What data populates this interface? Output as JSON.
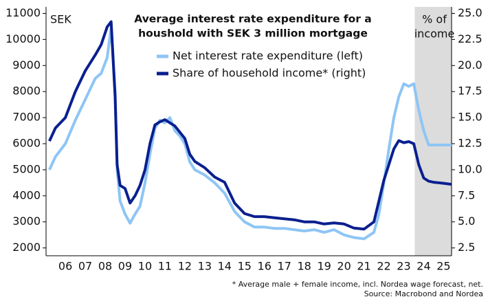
{
  "chart_data": {
    "type": "line",
    "title": [
      "Average interest rate expenditure for a",
      "houshold with SEK 3 million mortgage"
    ],
    "y_unit": "SEK",
    "y2_unit": [
      "% of",
      "income"
    ],
    "x": [
      5.7,
      6,
      6.5,
      7,
      7.5,
      8,
      8.3,
      8.6,
      8.8,
      9,
      9.1,
      9.25,
      9.5,
      9.75,
      10,
      10.25,
      10.5,
      10.75,
      11,
      11.25,
      11.5,
      11.75,
      12,
      12.25,
      12.5,
      12.75,
      13,
      13.5,
      14,
      14.5,
      15,
      15.5,
      16,
      16.5,
      17,
      17.5,
      18,
      18.5,
      19,
      19.5,
      20,
      20.5,
      21,
      21.5,
      22,
      22.25,
      22.5,
      22.75,
      23,
      23.25,
      23.5,
      23.75,
      24,
      24.25,
      24.5,
      24.75,
      25,
      25.5,
      25.9
    ],
    "series": [
      {
        "name": "Net interest rate expenditure (left)",
        "color": "#8ec5f5",
        "values": [
          5000,
          5500,
          6000,
          6900,
          7700,
          8500,
          8700,
          9300,
          10450,
          8000,
          5000,
          3800,
          3300,
          2950,
          3300,
          3600,
          4500,
          5600,
          6600,
          6900,
          6800,
          7000,
          6500,
          6300,
          6000,
          5300,
          5000,
          4800,
          4500,
          4100,
          3400,
          3000,
          2800,
          2800,
          2750,
          2750,
          2700,
          2650,
          2700,
          2600,
          2700,
          2500,
          2400,
          2350,
          2600,
          3300,
          4500,
          5800,
          7000,
          7800,
          8300,
          8200,
          8300,
          7300,
          6500,
          5950,
          5950,
          5950,
          5950
        ]
      },
      {
        "name": "Share of household income* (right)",
        "color": "#0a1f8f",
        "axis": "y2",
        "values": [
          12.75,
          14,
          15,
          17.5,
          19.5,
          21,
          22,
          23.7,
          24.2,
          17,
          10.5,
          8.5,
          8.2,
          6.8,
          7.5,
          8.5,
          10,
          12.5,
          14.3,
          14.6,
          14.8,
          14.5,
          14.2,
          13.6,
          13,
          11.5,
          10.8,
          10.2,
          9.3,
          8.8,
          6.8,
          5.8,
          5.5,
          5.5,
          5.4,
          5.3,
          5.2,
          5,
          5,
          4.8,
          4.9,
          4.8,
          4.4,
          4.3,
          5,
          7,
          9,
          10.5,
          12,
          12.8,
          12.6,
          12.7,
          12.5,
          10.5,
          9.2,
          8.9,
          8.8,
          8.7,
          8.6
        ]
      }
    ],
    "xlim": [
      5.53,
      25.9
    ],
    "xticks": [
      {
        "value": 6.5,
        "label": "06"
      },
      {
        "value": 7.5,
        "label": "07"
      },
      {
        "value": 8.5,
        "label": "08"
      },
      {
        "value": 9.5,
        "label": "09"
      },
      {
        "value": 10.5,
        "label": "10"
      },
      {
        "value": 11.5,
        "label": "11"
      },
      {
        "value": 12.5,
        "label": "12"
      },
      {
        "value": 13.5,
        "label": "13"
      },
      {
        "value": 14.5,
        "label": "14"
      },
      {
        "value": 15.5,
        "label": "15"
      },
      {
        "value": 16.5,
        "label": "16"
      },
      {
        "value": 17.5,
        "label": "17"
      },
      {
        "value": 18.5,
        "label": "18"
      },
      {
        "value": 19.5,
        "label": "19"
      },
      {
        "value": 20.5,
        "label": "20"
      },
      {
        "value": 21.5,
        "label": "21"
      },
      {
        "value": 22.5,
        "label": "22"
      },
      {
        "value": 23.5,
        "label": "23"
      },
      {
        "value": 24.5,
        "label": "24"
      },
      {
        "value": 25.5,
        "label": "25"
      }
    ],
    "ylim": [
      1700,
      11250
    ],
    "yticks": [
      2000,
      3000,
      4000,
      5000,
      6000,
      7000,
      8000,
      9000,
      10000,
      11000
    ],
    "y2lim": [
      1.75,
      25.625
    ],
    "y2ticks": [
      2.5,
      {
        "value": 5,
        "label": "5.0"
      },
      7.5,
      {
        "value": 10,
        "label": "10.0"
      },
      12.5,
      {
        "value": 15,
        "label": "15.0"
      },
      17.5,
      {
        "value": 20,
        "label": "20.0"
      },
      22.5,
      {
        "value": 25,
        "label": "25.0"
      }
    ],
    "forecast_shade": {
      "from": 24.05,
      "to": 25.9,
      "color": "#dcdcdc"
    },
    "footnotes": [
      "* Average male + female income, incl. Nordea wage forecast, net.",
      "Source: Macrobond and Nordea"
    ]
  }
}
